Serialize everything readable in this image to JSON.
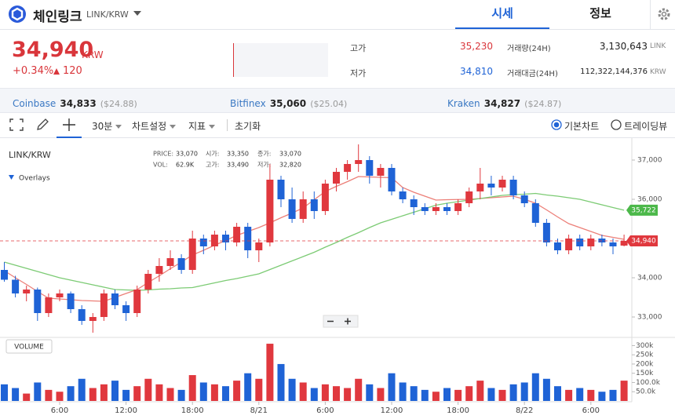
{
  "header": {
    "title": "체인링크",
    "pair": "LINK/KRW",
    "tabs": [
      "시세",
      "정보"
    ]
  },
  "ticker": {
    "price": "34,940",
    "currency": "KRW",
    "change_pct": "+0.34%",
    "change": "120",
    "stats": [
      {
        "label": "고가",
        "value": "35,230"
      },
      {
        "label": "저가",
        "value": "34,810"
      },
      {
        "label": "거래량(24H)",
        "value": "3,130,643",
        "unit": "LINK"
      },
      {
        "label": "거래대금(24H)",
        "value": "112,322,144,376",
        "unit": "KRW"
      }
    ]
  },
  "exchanges": [
    {
      "name": "Coinbase",
      "price": "34,833",
      "usd": "($24.88)"
    },
    {
      "name": "Bitfinex",
      "price": "35,060",
      "usd": "($25.04)"
    },
    {
      "name": "Kraken",
      "price": "34,827",
      "usd": "($24.87)"
    }
  ],
  "toolbar": {
    "interval": "30분",
    "menus": [
      "차트설정",
      "지표"
    ],
    "reset": "초기화",
    "modes": [
      "기본차트",
      "트레이딩뷰"
    ]
  },
  "chart_data": {
    "type": "candlestick",
    "pair_label": "LINK/KRW",
    "overlays": "Overlays",
    "volume_label": "VOLUME",
    "info": [
      {
        "label": "PRICE:",
        "value": "33,070"
      },
      {
        "label": "시가:",
        "value": "33,350"
      },
      {
        "label": "종가:",
        "value": "33,070"
      },
      {
        "label": "VOL:",
        "value": "62.9K"
      },
      {
        "label": "고가:",
        "value": "33,490"
      },
      {
        "label": "저가:",
        "value": "32,820"
      }
    ],
    "categories": [
      null,
      null,
      null,
      null,
      null,
      "6:00",
      null,
      null,
      null,
      null,
      null,
      "12:00",
      null,
      null,
      null,
      null,
      null,
      "18:00",
      null,
      null,
      null,
      null,
      null,
      "8/21",
      null,
      null,
      null,
      null,
      null,
      "6:00",
      null,
      null,
      null,
      null,
      null,
      "12:00",
      null,
      null,
      null,
      null,
      null,
      "18:00",
      null,
      null,
      null,
      null,
      null,
      "8/22",
      null,
      null,
      null,
      null,
      null,
      "6:00",
      null,
      null,
      null
    ],
    "open": [
      34200,
      33950,
      33600,
      33700,
      33100,
      33500,
      33600,
      33200,
      32900,
      33000,
      33600,
      33300,
      33100,
      33700,
      34100,
      34300,
      34500,
      34200,
      35000,
      34800,
      35100,
      34900,
      35300,
      34700,
      34900,
      36500,
      36000,
      35500,
      36000,
      35700,
      36400,
      36700,
      36900,
      37000,
      36600,
      36800,
      36200,
      36000,
      35800,
      35700,
      35800,
      35700,
      35900,
      36200,
      36400,
      36300,
      36500,
      36100,
      35900,
      35400,
      34900,
      34700,
      35000,
      34800,
      35000,
      34900,
      34820
    ],
    "high": [
      34400,
      34050,
      33800,
      33750,
      33600,
      33700,
      33650,
      33300,
      33100,
      33700,
      33700,
      33400,
      33800,
      34200,
      34500,
      34700,
      34600,
      35200,
      35100,
      35200,
      35200,
      35400,
      35400,
      35000,
      36900,
      36600,
      36300,
      36200,
      36200,
      36500,
      36800,
      37000,
      37400,
      37100,
      36900,
      36900,
      36300,
      36100,
      35900,
      35900,
      35900,
      36000,
      36300,
      36800,
      36600,
      36600,
      36600,
      36200,
      36000,
      35500,
      35000,
      35100,
      35100,
      35100,
      35100,
      35000,
      35100
    ],
    "low": [
      33900,
      33500,
      33400,
      32900,
      33000,
      33400,
      33100,
      32800,
      32600,
      32900,
      33200,
      32900,
      33000,
      33600,
      33900,
      34200,
      34100,
      34100,
      34600,
      34700,
      34700,
      34800,
      34500,
      34400,
      34800,
      35800,
      35400,
      35400,
      35500,
      35600,
      36200,
      36500,
      36700,
      36400,
      36300,
      36100,
      35900,
      35600,
      35600,
      35600,
      35600,
      35600,
      35800,
      36000,
      36100,
      36200,
      36000,
      35800,
      35300,
      34800,
      34600,
      34600,
      34700,
      34700,
      34800,
      34600,
      34800
    ],
    "close": [
      33950,
      33600,
      33700,
      33100,
      33500,
      33600,
      33200,
      32900,
      33000,
      33600,
      33300,
      33100,
      33700,
      34100,
      34300,
      34500,
      34200,
      35000,
      34800,
      35100,
      34900,
      35300,
      34700,
      34900,
      36500,
      36000,
      35500,
      36000,
      35700,
      36400,
      36700,
      36900,
      37000,
      36600,
      36800,
      36200,
      36000,
      35800,
      35700,
      35800,
      35700,
      35900,
      36200,
      36400,
      36300,
      36500,
      36100,
      35900,
      35400,
      34900,
      34700,
      35000,
      34800,
      35000,
      34900,
      34800,
      34940
    ],
    "volume": [
      90000,
      70000,
      40000,
      100000,
      60000,
      50000,
      80000,
      120000,
      70000,
      90000,
      110000,
      60000,
      80000,
      120000,
      90000,
      70000,
      60000,
      140000,
      100000,
      90000,
      80000,
      110000,
      150000,
      120000,
      310000,
      200000,
      120000,
      100000,
      70000,
      90000,
      80000,
      70000,
      120000,
      90000,
      70000,
      150000,
      100000,
      80000,
      60000,
      50000,
      70000,
      60000,
      80000,
      110000,
      70000,
      60000,
      90000,
      100000,
      150000,
      120000,
      80000,
      60000,
      70000,
      60000,
      50000,
      60000,
      110000
    ],
    "up_color": "#e0383e",
    "down_color": "#1f63d6",
    "ma": [
      {
        "color": "#ec7f78",
        "values": [
          34180,
          34000,
          33830,
          33650,
          33480,
          33460,
          33440,
          33420,
          33410,
          33400,
          33500,
          33600,
          33700,
          33880,
          34050,
          34230,
          34400,
          34580,
          34700,
          34830,
          34950,
          35080,
          35180,
          35280,
          35400,
          35530,
          35650,
          35780,
          35990,
          36200,
          36330,
          36450,
          36580,
          36570,
          36560,
          36550,
          36300,
          36180,
          36080,
          35980,
          35990,
          35995,
          36000,
          36020,
          36040,
          36060,
          36080,
          36000,
          35900,
          35730,
          35550,
          35380,
          35280,
          35180,
          35080,
          35030,
          34980
        ]
      },
      {
        "color": "#7ccb74",
        "values": [
          34400,
          34320,
          34240,
          34160,
          34080,
          34000,
          33940,
          33880,
          33820,
          33760,
          33700,
          33690,
          33680,
          33690,
          33710,
          33720,
          33740,
          33750,
          33810,
          33870,
          33930,
          33980,
          34040,
          34100,
          34210,
          34320,
          34430,
          34540,
          34650,
          34780,
          34900,
          35030,
          35150,
          35280,
          35400,
          35490,
          35580,
          35670,
          35760,
          35850,
          35900,
          35940,
          35980,
          36020,
          36060,
          36100,
          36120,
          36130,
          36150,
          36110,
          36080,
          36040,
          36000,
          35930,
          35860,
          35790,
          35722
        ]
      }
    ],
    "price_tags": [
      {
        "value": 35722,
        "label": "35,722",
        "color": "#4cb84a"
      },
      {
        "value": 34940,
        "label": "34,940",
        "color": "#e0383e"
      }
    ],
    "ylim": [
      32500,
      37500
    ],
    "yticks": [
      {
        "value": 33000,
        "label": "33,000"
      },
      {
        "value": 34000,
        "label": "34,000"
      },
      {
        "value": 36000,
        "label": "36,000"
      },
      {
        "value": 37000,
        "label": "37,000"
      }
    ],
    "volume_ylim": [
      0,
      340000
    ],
    "volume_ticks": [
      {
        "value": 50000,
        "label": "50.0k"
      },
      {
        "value": 100000,
        "label": "100.0k"
      },
      {
        "value": 150000,
        "label": "150k"
      },
      {
        "value": 200000,
        "label": "200k"
      },
      {
        "value": 250000,
        "label": "250k"
      },
      {
        "value": 300000,
        "label": "300k"
      }
    ]
  }
}
